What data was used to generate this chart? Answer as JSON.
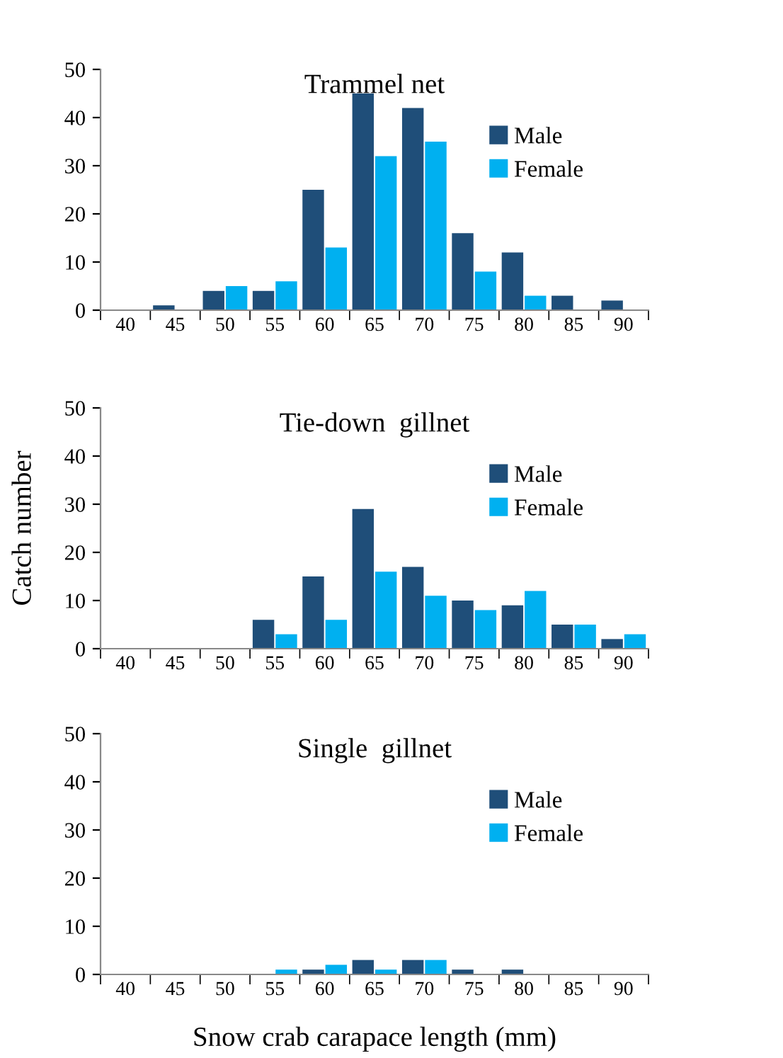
{
  "chart_data": [
    {
      "type": "bar",
      "title": "Trammel net",
      "categories": [
        "40",
        "45",
        "50",
        "55",
        "60",
        "65",
        "70",
        "75",
        "80",
        "85",
        "90"
      ],
      "series": [
        {
          "name": "Male",
          "color": "#1f4e79",
          "values": [
            0,
            1,
            4,
            4,
            25,
            45,
            42,
            16,
            12,
            3,
            2
          ]
        },
        {
          "name": "Female",
          "color": "#00b0f0",
          "values": [
            0,
            0,
            5,
            6,
            13,
            32,
            35,
            8,
            3,
            0,
            0
          ]
        }
      ],
      "ylim": [
        0,
        50
      ],
      "yticks": [
        0,
        10,
        20,
        30,
        40,
        50
      ],
      "grid": false,
      "legend": "top right"
    },
    {
      "type": "bar",
      "title": "Tie-down  gillnet",
      "ylabel": "Catch number",
      "categories": [
        "40",
        "45",
        "50",
        "55",
        "60",
        "65",
        "70",
        "75",
        "80",
        "85",
        "90"
      ],
      "series": [
        {
          "name": "Male",
          "color": "#1f4e79",
          "values": [
            0,
            0,
            0,
            6,
            15,
            29,
            17,
            10,
            9,
            5,
            2
          ]
        },
        {
          "name": "Female",
          "color": "#00b0f0",
          "values": [
            0,
            0,
            0,
            3,
            6,
            16,
            11,
            8,
            12,
            5,
            3
          ]
        }
      ],
      "ylim": [
        0,
        50
      ],
      "yticks": [
        0,
        10,
        20,
        30,
        40,
        50
      ],
      "grid": false,
      "legend": "top right"
    },
    {
      "type": "bar",
      "title": "Single  gillnet",
      "xlabel": "Snow crab carapace length (mm)",
      "categories": [
        "40",
        "45",
        "50",
        "55",
        "60",
        "65",
        "70",
        "75",
        "80",
        "85",
        "90"
      ],
      "series": [
        {
          "name": "Male",
          "color": "#1f4e79",
          "values": [
            0,
            0,
            0,
            0,
            1,
            3,
            3,
            1,
            1,
            0,
            0
          ]
        },
        {
          "name": "Female",
          "color": "#00b0f0",
          "values": [
            0,
            0,
            0,
            1,
            2,
            1,
            3,
            0,
            0,
            0,
            0
          ]
        }
      ],
      "ylim": [
        0,
        50
      ],
      "yticks": [
        0,
        10,
        20,
        30,
        40,
        50
      ],
      "grid": false,
      "legend": "top right"
    }
  ]
}
